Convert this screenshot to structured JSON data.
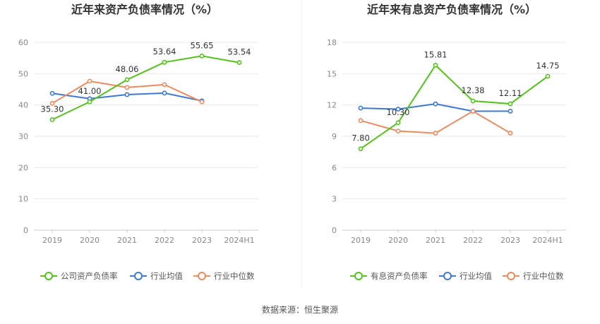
{
  "source_text": "数据来源：恒生聚源",
  "chart_data": [
    {
      "type": "line",
      "title": "近年来资产负债率情况（%）",
      "categories": [
        "2019",
        "2020",
        "2021",
        "2022",
        "2023",
        "2024H1"
      ],
      "ylim": [
        0,
        60
      ],
      "yticks": [
        "0",
        "10",
        "20",
        "30",
        "40",
        "50",
        "60"
      ],
      "grid": true,
      "legend_position": "bottom",
      "series": [
        {
          "name": "公司资产负债率",
          "color": "#52c41a",
          "values": [
            35.3,
            41.0,
            48.06,
            53.64,
            55.65,
            53.54
          ],
          "labels": [
            "35.30",
            "41.00",
            "48.06",
            "53.64",
            "55.65",
            "53.54"
          ]
        },
        {
          "name": "行业均值",
          "color": "#3c78d8",
          "values": [
            43.7,
            42.0,
            43.3,
            43.8,
            41.3,
            null
          ]
        },
        {
          "name": "行业中位数",
          "color": "#f08a5d",
          "values": [
            40.5,
            47.6,
            45.6,
            46.5,
            41.0,
            null
          ]
        }
      ]
    },
    {
      "type": "line",
      "title": "近年来有息资产负债率情况（%）",
      "categories": [
        "2019",
        "2020",
        "2021",
        "2022",
        "2023",
        "2024H1"
      ],
      "ylim": [
        0,
        18
      ],
      "yticks": [
        "0",
        "3",
        "6",
        "9",
        "12",
        "15",
        "18"
      ],
      "grid": true,
      "legend_position": "bottom",
      "series": [
        {
          "name": "有息资产负债率",
          "color": "#52c41a",
          "values": [
            7.8,
            10.3,
            15.81,
            12.38,
            12.11,
            14.75
          ],
          "labels": [
            "7.80",
            "10.30",
            "15.81",
            "12.38",
            "12.11",
            "14.75"
          ]
        },
        {
          "name": "行业均值",
          "color": "#3c78d8",
          "values": [
            11.7,
            11.6,
            12.1,
            11.4,
            11.4,
            null
          ]
        },
        {
          "name": "行业中位数",
          "color": "#f08a5d",
          "values": [
            10.5,
            9.5,
            9.3,
            11.4,
            9.3,
            null
          ]
        }
      ]
    }
  ]
}
